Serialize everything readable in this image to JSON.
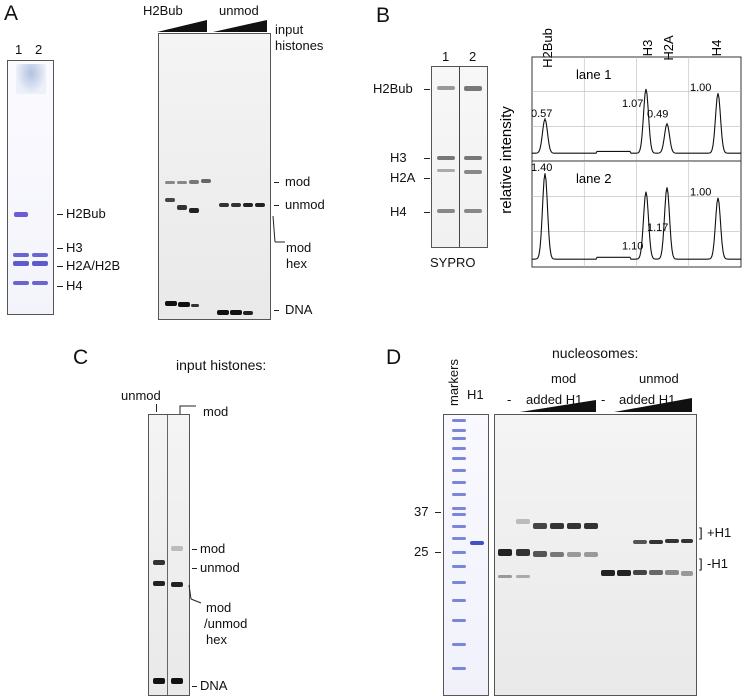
{
  "panels": {
    "a": {
      "label": "A",
      "lanes": [
        "1",
        "2"
      ],
      "coomassie_bands": [
        "H2Bub",
        "H3",
        "H2A/H2B",
        "H4"
      ],
      "group_labels": [
        "H2Bub",
        "unmod"
      ],
      "input_label_line1": "input",
      "input_label_line2": "histones",
      "gel_labels": {
        "mod": "mod",
        "unmod": "unmod",
        "mod_hex_line1": "mod",
        "mod_hex_line2": "hex",
        "dna": "DNA"
      }
    },
    "b": {
      "label": "B",
      "lanes": [
        "1",
        "2"
      ],
      "bands": [
        "H2Bub",
        "H3",
        "H2A",
        "H4"
      ],
      "stain": "SYPRO",
      "ylabel": "relative intensity",
      "peak_headers": [
        "H2Bub",
        "H3",
        "H2A",
        "H4"
      ],
      "lane1_title": "lane 1",
      "lane2_title": "lane 2"
    },
    "c": {
      "label": "C",
      "title": "input histones:",
      "lane_unmod": "unmod",
      "lane_mod": "mod",
      "gel_labels": {
        "mod": "mod",
        "unmod": "unmod",
        "hex_line1": "mod",
        "hex_line2": "/unmod",
        "hex_line3": "hex",
        "dna": "DNA"
      }
    },
    "d": {
      "label": "D",
      "markers": "markers",
      "h1": "H1",
      "dash": "-",
      "title": "nucleosomes:",
      "group_mod": "mod",
      "group_unmod": "unmod",
      "added_h1": "added H1",
      "mw_37": "37",
      "mw_25": "25",
      "plus_h1": "+H1",
      "minus_h1": "-H1"
    }
  },
  "chart_data": [
    {
      "type": "line",
      "title": "lane 1",
      "ylabel": "relative intensity",
      "peaks": [
        {
          "band": "H2Bub",
          "value": 0.57
        },
        {
          "band": "H3",
          "value": 1.07
        },
        {
          "band": "H2A",
          "value": 0.49
        },
        {
          "band": "H4",
          "value": 1.0
        }
      ],
      "peak_labels": [
        "0.57",
        "1.07",
        "0.49",
        "1.00"
      ],
      "grid": true
    },
    {
      "type": "line",
      "title": "lane 2",
      "ylabel": "relative intensity",
      "peaks": [
        {
          "band": "H2Bub",
          "value": 1.4
        },
        {
          "band": "H3",
          "value": 1.1
        },
        {
          "band": "H2A",
          "value": 1.17
        },
        {
          "band": "H4",
          "value": 1.0
        }
      ],
      "peak_labels": [
        "1.40",
        "1.10",
        "1.17",
        "1.00"
      ],
      "grid": true
    }
  ]
}
